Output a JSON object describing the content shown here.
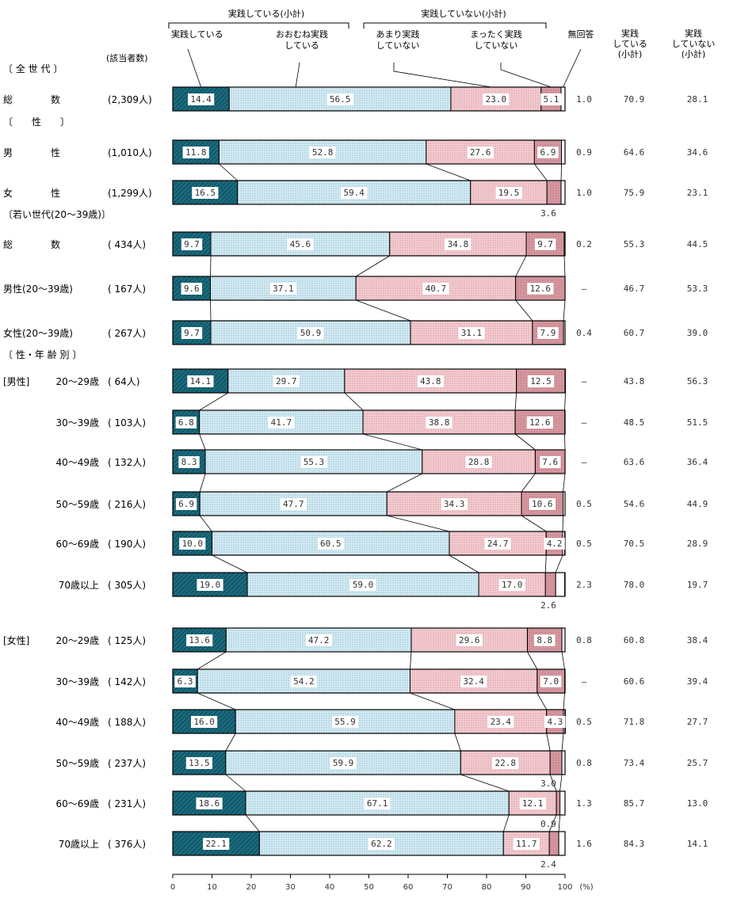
{
  "chart_data": {
    "type": "stacked-bar-horizontal",
    "unit": "(%)",
    "xlim": [
      0,
      100
    ],
    "x_ticks": [
      "0",
      "10",
      "20",
      "30",
      "40",
      "50",
      "60",
      "70",
      "80",
      "90",
      "100"
    ],
    "header": {
      "group_practice": "実践している(小計)",
      "group_not": "実践していない(小計)",
      "cat_labels": [
        "実践している",
        "おおむね実践\nしている",
        "あまり実践\nしていない",
        "まったく実践\nしていない",
        "無回答"
      ],
      "col_sub_yes": "実践\nしている\n(小計)",
      "col_sub_no": "実践\nしていない\n(小計)",
      "count_header": "(該当者数)"
    },
    "series": [
      {
        "name": "実践している",
        "color": "#1a6b7e"
      },
      {
        "name": "おおむね実践している",
        "color": "#cfe7f1"
      },
      {
        "name": "あまり実践していない",
        "color": "#f2c6cc"
      },
      {
        "name": "まったく実践していない",
        "color": "#e8a6ae"
      },
      {
        "name": "無回答",
        "color": "#ffffff"
      }
    ],
    "sections": [
      {
        "label": "〔 全 世 代 〕",
        "row": 0
      },
      {
        "label": "〔　　性　　〕",
        "row": 1
      },
      {
        "label": "〔若い世代(20～39歳)〕",
        "row": 3
      },
      {
        "label": "〔 性・年 齢 別 〕",
        "row": 6
      },
      {
        "label": "[男性]",
        "row": 6,
        "inline": true
      },
      {
        "label": "[女性]",
        "row": 12,
        "inline": true
      }
    ],
    "rows": [
      {
        "label": "総　　　　数",
        "n": "(2,309人)",
        "values": [
          14.4,
          56.5,
          23.0,
          5.1,
          1.0
        ],
        "labels": [
          "14.4",
          "56.5",
          "23.0",
          "5.1",
          "1.0"
        ],
        "sub_yes": "70.9",
        "sub_no": "28.1"
      },
      {
        "label": "男　　　　性",
        "n": "(1,010人)",
        "values": [
          11.8,
          52.8,
          27.6,
          6.9,
          0.9
        ],
        "labels": [
          "11.8",
          "52.8",
          "27.6",
          "6.9",
          "0.9"
        ],
        "sub_yes": "64.6",
        "sub_no": "34.6"
      },
      {
        "label": "女　　　　性",
        "n": "(1,299人)",
        "values": [
          16.5,
          59.4,
          19.5,
          3.6,
          1.0
        ],
        "labels": [
          "16.5",
          "59.4",
          "19.5",
          "3.6",
          "1.0"
        ],
        "sub_yes": "75.9",
        "sub_no": "23.1",
        "below_label": "3.6"
      },
      {
        "label": "総　　　　数",
        "n": "( 434人)",
        "values": [
          9.7,
          45.6,
          34.8,
          9.7,
          0.2
        ],
        "labels": [
          "9.7",
          "45.6",
          "34.8",
          "9.7",
          "0.2"
        ],
        "sub_yes": "55.3",
        "sub_no": "44.5"
      },
      {
        "label": "男性(20～39歳)",
        "n": "( 167人)",
        "values": [
          9.6,
          37.1,
          40.7,
          12.6,
          0
        ],
        "labels": [
          "9.6",
          "37.1",
          "40.7",
          "12.6",
          "–"
        ],
        "sub_yes": "46.7",
        "sub_no": "53.3"
      },
      {
        "label": "女性(20～39歳)",
        "n": "( 267人)",
        "values": [
          9.7,
          50.9,
          31.1,
          7.9,
          0.4
        ],
        "labels": [
          "9.7",
          "50.9",
          "31.1",
          "7.9",
          "0.4"
        ],
        "sub_yes": "60.7",
        "sub_no": "39.0"
      },
      {
        "label": "20～29歳",
        "n": "( 64人)",
        "values": [
          14.1,
          29.7,
          43.8,
          12.5,
          0
        ],
        "labels": [
          "14.1",
          "29.7",
          "43.8",
          "12.5",
          "–"
        ],
        "sub_yes": "43.8",
        "sub_no": "56.3"
      },
      {
        "label": "30～39歳",
        "n": "( 103人)",
        "values": [
          6.8,
          41.7,
          38.8,
          12.6,
          0
        ],
        "labels": [
          "6.8",
          "41.7",
          "38.8",
          "12.6",
          "–"
        ],
        "sub_yes": "48.5",
        "sub_no": "51.5"
      },
      {
        "label": "40～49歳",
        "n": "( 132人)",
        "values": [
          8.3,
          55.3,
          28.8,
          7.6,
          0
        ],
        "labels": [
          "8.3",
          "55.3",
          "28.8",
          "7.6",
          "–"
        ],
        "sub_yes": "63.6",
        "sub_no": "36.4"
      },
      {
        "label": "50～59歳",
        "n": "( 216人)",
        "values": [
          6.9,
          47.7,
          34.3,
          10.6,
          0.5
        ],
        "labels": [
          "6.9",
          "47.7",
          "34.3",
          "10.6",
          "0.5"
        ],
        "sub_yes": "54.6",
        "sub_no": "44.9"
      },
      {
        "label": "60～69歳",
        "n": "( 190人)",
        "values": [
          10.0,
          60.5,
          24.7,
          4.2,
          0.5
        ],
        "labels": [
          "10.0",
          "60.5",
          "24.7",
          "4.2",
          "0.5"
        ],
        "sub_yes": "70.5",
        "sub_no": "28.9"
      },
      {
        "label": "70歳以上",
        "n": "( 305人)",
        "values": [
          19.0,
          59.0,
          17.0,
          2.6,
          2.3
        ],
        "labels": [
          "19.0",
          "59.0",
          "17.0",
          "2.6",
          "2.3"
        ],
        "sub_yes": "78.0",
        "sub_no": "19.7",
        "below_label": "2.6"
      },
      {
        "label": "20～29歳",
        "n": "( 125人)",
        "values": [
          13.6,
          47.2,
          29.6,
          8.8,
          0.8
        ],
        "labels": [
          "13.6",
          "47.2",
          "29.6",
          "8.8",
          "0.8"
        ],
        "sub_yes": "60.8",
        "sub_no": "38.4"
      },
      {
        "label": "30～39歳",
        "n": "( 142人)",
        "values": [
          6.3,
          54.2,
          32.4,
          7.0,
          0
        ],
        "labels": [
          "6.3",
          "54.2",
          "32.4",
          "7.0",
          "–"
        ],
        "sub_yes": "60.6",
        "sub_no": "39.4"
      },
      {
        "label": "40～49歳",
        "n": "( 188人)",
        "values": [
          16.0,
          55.9,
          23.4,
          4.3,
          0.5
        ],
        "labels": [
          "16.0",
          "55.9",
          "23.4",
          "4.3",
          "0.5"
        ],
        "sub_yes": "71.8",
        "sub_no": "27.7"
      },
      {
        "label": "50～59歳",
        "n": "( 237人)",
        "values": [
          13.5,
          59.9,
          22.8,
          3.0,
          0.8
        ],
        "labels": [
          "13.5",
          "59.9",
          "22.8",
          "3.0",
          "0.8"
        ],
        "sub_yes": "73.4",
        "sub_no": "25.7",
        "below_label": "3.0"
      },
      {
        "label": "60～69歳",
        "n": "( 231人)",
        "values": [
          18.6,
          67.1,
          12.1,
          0.9,
          1.3
        ],
        "labels": [
          "18.6",
          "67.1",
          "12.1",
          "0.9",
          "1.3"
        ],
        "sub_yes": "85.7",
        "sub_no": "13.0",
        "below_label": "0.9"
      },
      {
        "label": "70歳以上",
        "n": "( 376人)",
        "values": [
          22.1,
          62.2,
          11.7,
          2.4,
          1.6
        ],
        "labels": [
          "22.1",
          "62.2",
          "11.7",
          "2.4",
          "1.6"
        ],
        "sub_yes": "84.3",
        "sub_no": "14.1",
        "below_label": "2.4"
      }
    ]
  }
}
